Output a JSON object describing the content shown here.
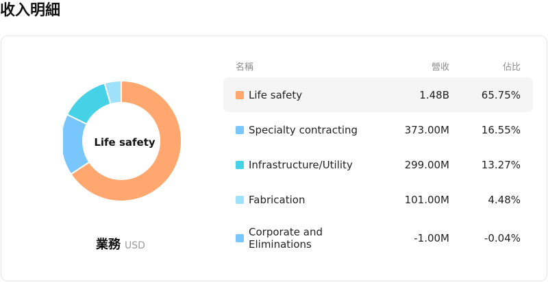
{
  "page": {
    "title": "收入明細"
  },
  "card": {
    "segment_label": "業務",
    "currency": "USD",
    "donut_center_label": "Life safety"
  },
  "table": {
    "headers": {
      "name": "名稱",
      "revenue": "營收",
      "share": "佔比"
    },
    "rows": [
      {
        "name": "Life safety",
        "revenue": "1.48B",
        "share": "65.75%",
        "share_value": 65.75,
        "color": "#ffa76e",
        "active": true
      },
      {
        "name": "Specialty contracting",
        "revenue": "373.00M",
        "share": "16.55%",
        "share_value": 16.55,
        "color": "#78c6fb",
        "active": false
      },
      {
        "name": "Infrastructure/Utility",
        "revenue": "299.00M",
        "share": "13.27%",
        "share_value": 13.27,
        "color": "#45d1e6",
        "active": false
      },
      {
        "name": "Fabrication",
        "revenue": "101.00M",
        "share": "4.48%",
        "share_value": 4.48,
        "color": "#9fe0fa",
        "active": false
      },
      {
        "name": "Corporate and Eliminations",
        "revenue": "-1.00M",
        "share": "-0.04%",
        "share_value": -0.04,
        "color": "#78c6fb",
        "active": false
      }
    ]
  }
}
